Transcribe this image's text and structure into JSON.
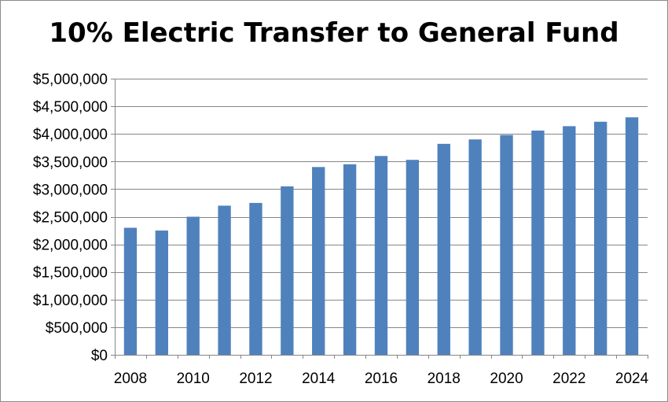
{
  "chart_data": {
    "type": "bar",
    "title": "10% Electric Transfer to General Fund",
    "xlabel": "",
    "ylabel": "",
    "categories": [
      "2008",
      "2009",
      "2010",
      "2011",
      "2012",
      "2013",
      "2014",
      "2015",
      "2016",
      "2017",
      "2018",
      "2019",
      "2020",
      "2021",
      "2022",
      "2023",
      "2024"
    ],
    "x_tick_labels": [
      "2008",
      "2010",
      "2012",
      "2014",
      "2016",
      "2018",
      "2020",
      "2022",
      "2024"
    ],
    "values": [
      2300000,
      2250000,
      2500000,
      2700000,
      2750000,
      3050000,
      3400000,
      3450000,
      3600000,
      3530000,
      3820000,
      3900000,
      3980000,
      4060000,
      4140000,
      4220000,
      4300000
    ],
    "ylim": [
      0,
      5000000
    ],
    "y_ticks": [
      0,
      500000,
      1000000,
      1500000,
      2000000,
      2500000,
      3000000,
      3500000,
      4000000,
      4500000,
      5000000
    ],
    "y_tick_labels": [
      "$0",
      "$500,000",
      "$1,000,000",
      "$1,500,000",
      "$2,000,000",
      "$2,500,000",
      "$3,000,000",
      "$3,500,000",
      "$4,000,000",
      "$4,500,000",
      "$5,000,000"
    ],
    "grid": true,
    "legend": "none",
    "bar_color": "#4f81bd",
    "grid_color": "#868686"
  }
}
